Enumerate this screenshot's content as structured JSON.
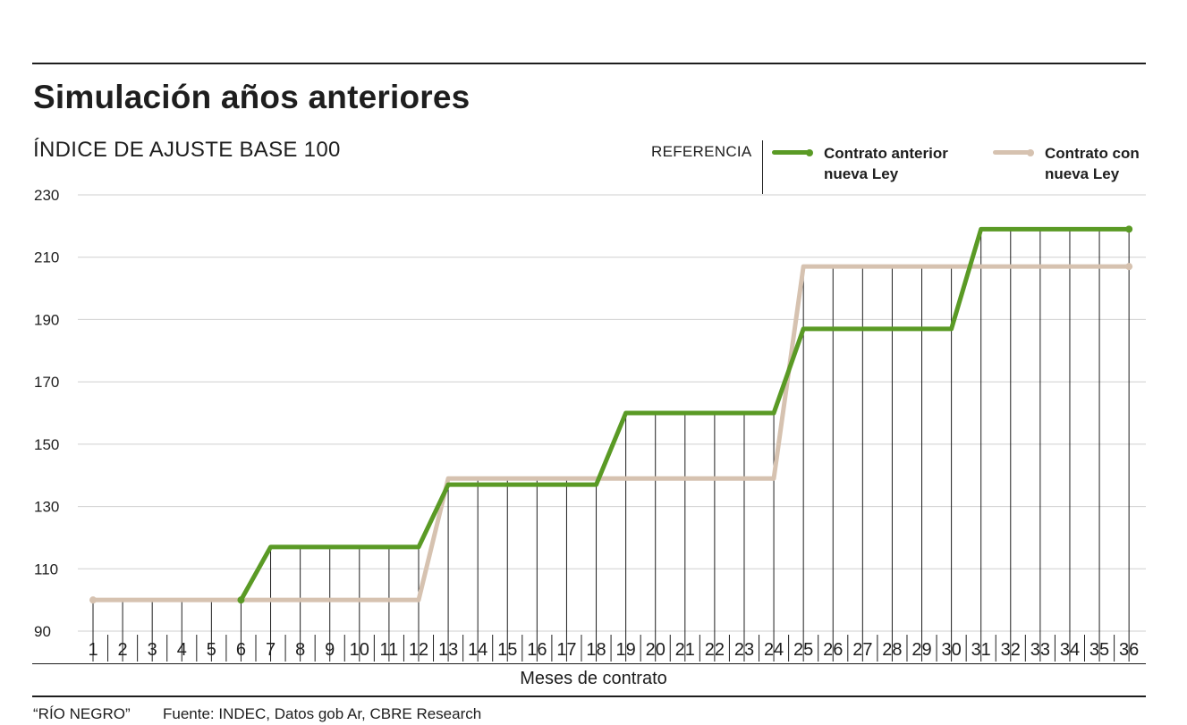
{
  "header": {
    "title": "Simulación años anteriores",
    "subtitle": "ÍNDICE DE AJUSTE BASE 100"
  },
  "legend": {
    "label": "REFERENCIA",
    "items": [
      {
        "label": "Contrato anterior nueva Ley",
        "color": "#5a9a25"
      },
      {
        "label": "Contrato con nueva Ley",
        "color": "#d6c2b0"
      }
    ]
  },
  "footer": {
    "credit": "“RÍO NEGRO”",
    "source": "Fuente: INDEC, Datos gob Ar, CBRE Research"
  },
  "chart_data": {
    "type": "line",
    "title": "Simulación años anteriores",
    "subtitle": "ÍNDICE DE AJUSTE BASE 100",
    "xlabel": "Meses de contrato",
    "ylabel": "",
    "ylim": [
      90,
      230
    ],
    "yticks": [
      90,
      110,
      130,
      150,
      170,
      190,
      210,
      230
    ],
    "grid": true,
    "legend_position": "top-right",
    "x": [
      1,
      2,
      3,
      4,
      5,
      6,
      7,
      8,
      9,
      10,
      11,
      12,
      13,
      14,
      15,
      16,
      17,
      18,
      19,
      20,
      21,
      22,
      23,
      24,
      25,
      26,
      27,
      28,
      29,
      30,
      31,
      32,
      33,
      34,
      35,
      36
    ],
    "series": [
      {
        "name": "Contrato anterior nueva Ley",
        "color": "#5a9a25",
        "x_start": 6,
        "values": [
          100,
          100,
          100,
          100,
          100,
          100,
          117,
          117,
          117,
          117,
          117,
          117,
          137,
          137,
          137,
          137,
          137,
          137,
          160,
          160,
          160,
          160,
          160,
          160,
          187,
          187,
          187,
          187,
          187,
          187,
          219,
          219,
          219,
          219,
          219,
          219
        ]
      },
      {
        "name": "Contrato con nueva Ley",
        "color": "#d6c2b0",
        "x_start": 1,
        "values": [
          100,
          100,
          100,
          100,
          100,
          100,
          100,
          100,
          100,
          100,
          100,
          100,
          139,
          139,
          139,
          139,
          139,
          139,
          139,
          139,
          139,
          139,
          139,
          139,
          207,
          207,
          207,
          207,
          207,
          207,
          207,
          207,
          207,
          207,
          207,
          207
        ]
      }
    ]
  }
}
